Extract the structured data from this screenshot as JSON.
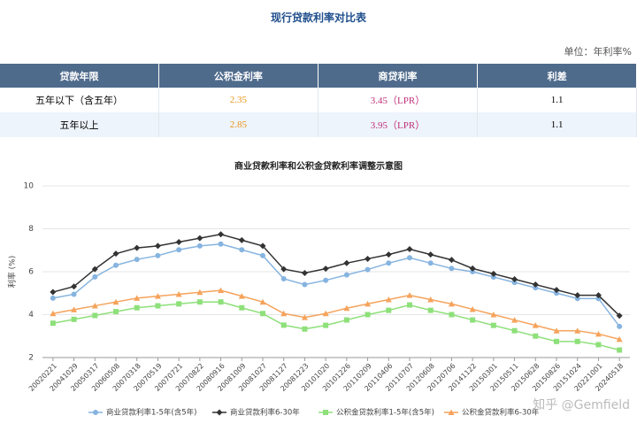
{
  "title": "现行贷款利率对比表",
  "unit": "单位：年利率%",
  "table": {
    "header": [
      "贷款年限",
      "公积金利率",
      "商贷利率",
      "利差"
    ],
    "rows": [
      [
        "五年以下（含五年）",
        "2.35",
        "3.45（LPR）",
        "1.1"
      ],
      [
        "五年以上",
        "2.85",
        "3.95（LPR）",
        "1.1"
      ]
    ]
  },
  "watermark": "知乎 @Gemfield",
  "chart_data": {
    "type": "line",
    "title": "商业贷款利率和公积金贷款利率调整示意图",
    "y_label": "利率 (%)",
    "categories": [
      "20020221",
      "20041029",
      "20050317",
      "20060508",
      "20070318",
      "20070519",
      "20070721",
      "20070822",
      "20080916",
      "20081009",
      "20081027",
      "20081127",
      "20081223",
      "20101020",
      "20101226",
      "20110209",
      "20110406",
      "20110707",
      "20120608",
      "20120706",
      "20141122",
      "20150301",
      "20150511",
      "20150628",
      "20150826",
      "20151024",
      "20221001",
      "20240518"
    ],
    "series": [
      {
        "name": "商业贷款利率1-5年(含5年)",
        "color": "#86b4e0",
        "marker": "circle",
        "values": [
          4.77,
          4.95,
          5.76,
          6.3,
          6.57,
          6.75,
          7.02,
          7.2,
          7.29,
          7.02,
          6.75,
          5.67,
          5.4,
          5.6,
          5.85,
          6.1,
          6.4,
          6.65,
          6.4,
          6.15,
          6.0,
          5.75,
          5.5,
          5.25,
          5.0,
          4.75,
          4.75,
          3.45
        ]
      },
      {
        "name": "商业贷款利率6-30年",
        "color": "#333333",
        "marker": "diamond",
        "values": [
          5.05,
          5.31,
          6.12,
          6.84,
          7.11,
          7.2,
          7.38,
          7.56,
          7.74,
          7.47,
          7.2,
          6.12,
          5.94,
          6.14,
          6.4,
          6.6,
          6.8,
          7.05,
          6.8,
          6.55,
          6.15,
          5.9,
          5.65,
          5.4,
          5.15,
          4.9,
          4.9,
          3.95
        ]
      },
      {
        "name": "公积金贷款利率1-5年(含5年)",
        "color": "#8ee07a",
        "marker": "square",
        "values": [
          3.6,
          3.78,
          3.96,
          4.14,
          4.32,
          4.41,
          4.5,
          4.59,
          4.59,
          4.32,
          4.05,
          3.51,
          3.33,
          3.5,
          3.75,
          4.0,
          4.2,
          4.45,
          4.2,
          4.0,
          3.75,
          3.5,
          3.25,
          3.0,
          2.75,
          2.75,
          2.6,
          2.35
        ]
      },
      {
        "name": "公积金贷款利率6-30年",
        "color": "#f5a35c",
        "marker": "triangle",
        "values": [
          4.05,
          4.23,
          4.41,
          4.59,
          4.77,
          4.86,
          4.95,
          5.04,
          5.13,
          4.86,
          4.59,
          4.05,
          3.87,
          4.05,
          4.3,
          4.5,
          4.7,
          4.9,
          4.7,
          4.5,
          4.25,
          4.0,
          3.75,
          3.5,
          3.25,
          3.25,
          3.1,
          2.85
        ]
      }
    ],
    "ylim": [
      2,
      10
    ],
    "yticks": [
      2,
      4,
      6,
      8,
      10
    ],
    "grid": true,
    "legend": "bottom"
  }
}
